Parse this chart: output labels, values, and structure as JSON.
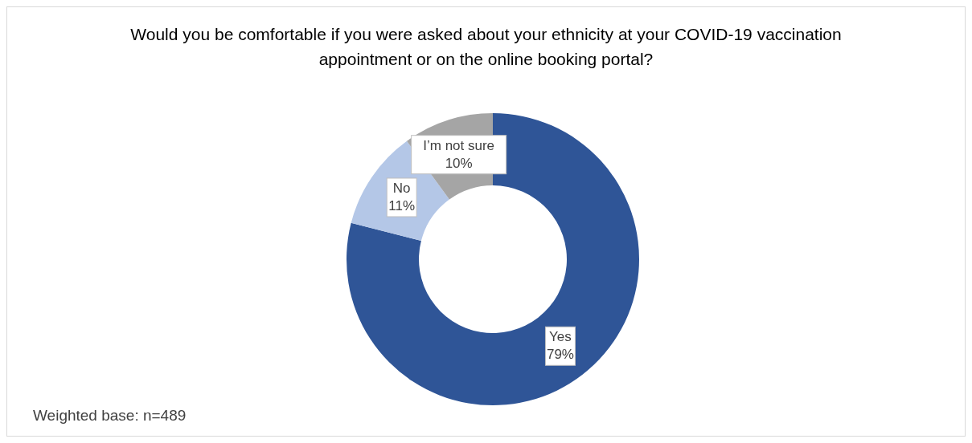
{
  "chart_data": {
    "type": "donut",
    "title": "Would you be comfortable if you were asked about your ethnicity at your COVID-19 vaccination appointment or on the online booking portal?",
    "categories": [
      "Yes",
      "No",
      "I’m not sure"
    ],
    "values": [
      79,
      11,
      10
    ],
    "value_labels": [
      "79%",
      "11%",
      "10%"
    ],
    "colors": [
      "#2f5597",
      "#b4c7e7",
      "#a5a5a5"
    ],
    "legend": false,
    "annotations": [
      "Weighted base: n=489"
    ]
  }
}
